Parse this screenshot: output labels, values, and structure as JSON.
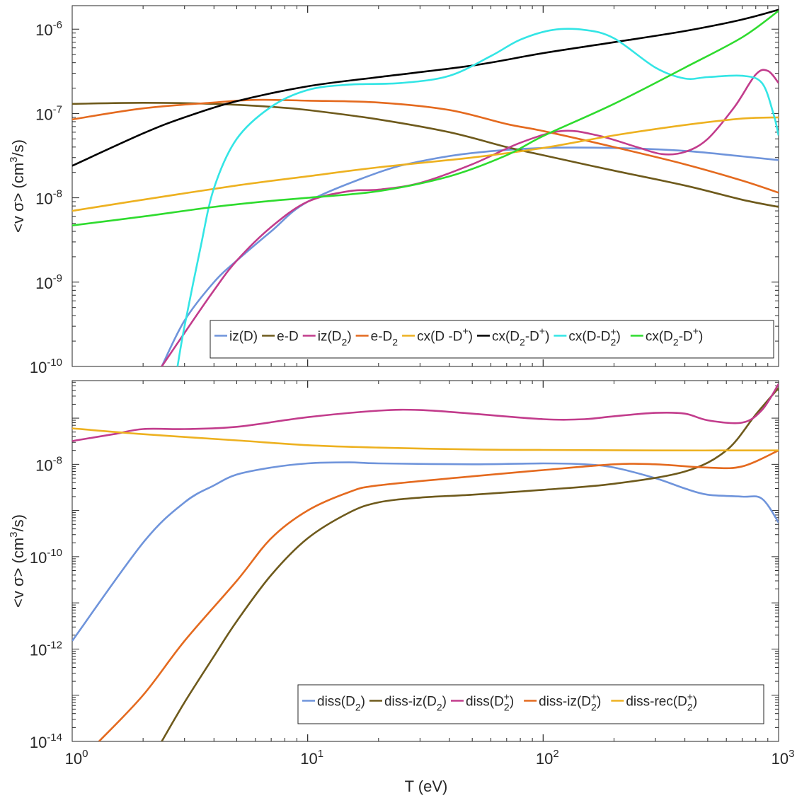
{
  "figure": {
    "xlabel": "T (eV)",
    "x_ticks": [
      {
        "value": 1,
        "base": "10",
        "exp": "0"
      },
      {
        "value": 10,
        "base": "10",
        "exp": "1"
      },
      {
        "value": 100,
        "base": "10",
        "exp": "2"
      },
      {
        "value": 1000,
        "base": "10",
        "exp": "3"
      }
    ]
  },
  "chart_data": [
    {
      "type": "line",
      "scale": "log-log",
      "title": "",
      "xlabel": "",
      "ylabel": "<v σ> (cm³/s)",
      "xlim": [
        1,
        1000
      ],
      "ylim": [
        1e-10,
        1.9e-06
      ],
      "legend_position": "bottom-right",
      "y_ticks": [
        {
          "value": 1e-06,
          "base": "10",
          "exp": "-6"
        },
        {
          "value": 1e-07,
          "base": "10",
          "exp": "-7"
        },
        {
          "value": 1e-08,
          "base": "10",
          "exp": "-8"
        },
        {
          "value": 1e-09,
          "base": "10",
          "exp": "-9"
        },
        {
          "value": 1e-10,
          "base": "10",
          "exp": "-10"
        }
      ],
      "series": [
        {
          "name": "iz(D)",
          "label_main": "iz(D)",
          "label_sub": "",
          "label_sup": "",
          "label_tail": "",
          "color": "#6F94DB",
          "points": [
            [
              2.4,
              1e-10
            ],
            [
              3,
              3.5e-10
            ],
            [
              4,
              1e-09
            ],
            [
              5,
              1.8e-09
            ],
            [
              7,
              4e-09
            ],
            [
              10,
              9e-09
            ],
            [
              20,
              2e-08
            ],
            [
              30,
              2.7e-08
            ],
            [
              50,
              3.4e-08
            ],
            [
              100,
              3.9e-08
            ],
            [
              200,
              3.9e-08
            ],
            [
              400,
              3.6e-08
            ],
            [
              700,
              3.1e-08
            ],
            [
              1000,
              2.8e-08
            ]
          ]
        },
        {
          "name": "e-D",
          "label_main": "e-D",
          "label_sub": "",
          "label_sup": "",
          "label_tail": "",
          "color": "#6E5A1C",
          "points": [
            [
              1,
              1.3e-07
            ],
            [
              2,
              1.34e-07
            ],
            [
              4,
              1.3e-07
            ],
            [
              7,
              1.2e-07
            ],
            [
              10,
              1.1e-07
            ],
            [
              20,
              8.5e-08
            ],
            [
              40,
              6e-08
            ],
            [
              70,
              4e-08
            ],
            [
              100,
              3.2e-08
            ],
            [
              200,
              2.1e-08
            ],
            [
              400,
              1.4e-08
            ],
            [
              700,
              9.5e-09
            ],
            [
              1000,
              7.8e-09
            ]
          ]
        },
        {
          "name": "iz(D2)",
          "label_main": "iz(D",
          "label_sub": "2",
          "label_sup": "",
          "label_tail": ")",
          "color": "#C23C8C",
          "points": [
            [
              2.4,
              1e-10
            ],
            [
              3,
              2.5e-10
            ],
            [
              4,
              8e-10
            ],
            [
              5,
              1.8e-09
            ],
            [
              7,
              4.5e-09
            ],
            [
              10,
              9e-09
            ],
            [
              15,
              1.2e-08
            ],
            [
              20,
              1.25e-08
            ],
            [
              30,
              1.5e-08
            ],
            [
              50,
              2.5e-08
            ],
            [
              80,
              4.5e-08
            ],
            [
              120,
              6.2e-08
            ],
            [
              170,
              5.5e-08
            ],
            [
              250,
              4e-08
            ],
            [
              320,
              3.3e-08
            ],
            [
              400,
              3.5e-08
            ],
            [
              500,
              5e-08
            ],
            [
              650,
              1.2e-07
            ],
            [
              800,
              2.9e-07
            ],
            [
              900,
              3.2e-07
            ],
            [
              1000,
              2.3e-07
            ]
          ]
        },
        {
          "name": "e-D2",
          "label_main": "e-D",
          "label_sub": "2",
          "label_sup": "",
          "label_tail": "",
          "color": "#E46A1F",
          "points": [
            [
              1,
              8.5e-08
            ],
            [
              2,
              1.15e-07
            ],
            [
              4,
              1.35e-07
            ],
            [
              6,
              1.45e-07
            ],
            [
              10,
              1.42e-07
            ],
            [
              20,
              1.35e-07
            ],
            [
              40,
              1.1e-07
            ],
            [
              70,
              7.5e-08
            ],
            [
              100,
              6.2e-08
            ],
            [
              200,
              4e-08
            ],
            [
              400,
              2.5e-08
            ],
            [
              700,
              1.6e-08
            ],
            [
              1000,
              1.15e-08
            ]
          ]
        },
        {
          "name": "cx(D-D+)",
          "label_main": "cx(D -D",
          "label_sub": "",
          "label_sup": "+",
          "label_tail": ")",
          "color": "#EDB120",
          "points": [
            [
              1,
              7e-09
            ],
            [
              2,
              9.5e-09
            ],
            [
              5,
              1.4e-08
            ],
            [
              10,
              1.8e-08
            ],
            [
              20,
              2.3e-08
            ],
            [
              50,
              3e-08
            ],
            [
              100,
              3.9e-08
            ],
            [
              200,
              5.5e-08
            ],
            [
              400,
              7.3e-08
            ],
            [
              700,
              8.7e-08
            ],
            [
              1000,
              9e-08
            ]
          ]
        },
        {
          "name": "cx(D2-D2+)",
          "label_main": "cx(D",
          "label_sub": "2",
          "label_sup": "+",
          "label_tail": ")",
          "label_mid": "-D",
          "color": "#000000",
          "points": [
            [
              1,
              2.4e-08
            ],
            [
              2,
              5.8e-08
            ],
            [
              3,
              9e-08
            ],
            [
              5,
              1.4e-07
            ],
            [
              10,
              2.1e-07
            ],
            [
              20,
              2.7e-07
            ],
            [
              50,
              3.7e-07
            ],
            [
              100,
              5.2e-07
            ],
            [
              200,
              7e-07
            ],
            [
              400,
              9.5e-07
            ],
            [
              700,
              1.3e-06
            ],
            [
              1000,
              1.7e-06
            ]
          ]
        },
        {
          "name": "cx(D-D2+)",
          "label_main": "cx(D-D",
          "label_sub": "2",
          "label_sup": "+",
          "label_tail": ")",
          "color": "#33E5E5",
          "points": [
            [
              2.8,
              1e-10
            ],
            [
              3,
              3e-10
            ],
            [
              3.5,
              2.5e-09
            ],
            [
              4,
              1.3e-08
            ],
            [
              5,
              5e-08
            ],
            [
              7,
              1.2e-07
            ],
            [
              10,
              1.9e-07
            ],
            [
              15,
              2.2e-07
            ],
            [
              25,
              2.3e-07
            ],
            [
              40,
              2.8e-07
            ],
            [
              60,
              4.8e-07
            ],
            [
              80,
              7.5e-07
            ],
            [
              110,
              9.8e-07
            ],
            [
              150,
              9.8e-07
            ],
            [
              200,
              7.8e-07
            ],
            [
              300,
              3.5e-07
            ],
            [
              400,
              2.6e-07
            ],
            [
              500,
              2.7e-07
            ],
            [
              700,
              2.8e-07
            ],
            [
              850,
              2.3e-07
            ],
            [
              950,
              1e-07
            ],
            [
              1000,
              5.5e-08
            ]
          ]
        },
        {
          "name": "cx(D2-D+)",
          "label_main": "cx(D",
          "label_sub": "2",
          "label_sup": "+",
          "label_tail": ")",
          "label_mid": "-D",
          "color": "#2EDB2E",
          "points": [
            [
              1,
              4.7e-09
            ],
            [
              2,
              6e-09
            ],
            [
              4,
              7.8e-09
            ],
            [
              7,
              9.2e-09
            ],
            [
              10,
              1e-08
            ],
            [
              20,
              1.2e-08
            ],
            [
              40,
              1.8e-08
            ],
            [
              70,
              3.2e-08
            ],
            [
              100,
              5.4e-08
            ],
            [
              200,
              1.3e-07
            ],
            [
              400,
              3.5e-07
            ],
            [
              700,
              8e-07
            ],
            [
              1000,
              1.65e-06
            ]
          ]
        }
      ]
    },
    {
      "type": "line",
      "scale": "log-log",
      "title": "",
      "xlabel": "T (eV)",
      "ylabel": "<v σ> (cm³/s)",
      "xlim": [
        1,
        1000
      ],
      "ylim": [
        1e-14,
        6.5e-07
      ],
      "legend_position": "bottom-right",
      "y_ticks": [
        {
          "value": 1e-08,
          "base": "10",
          "exp": "-8"
        },
        {
          "value": 1e-10,
          "base": "10",
          "exp": "-10"
        },
        {
          "value": 1e-12,
          "base": "10",
          "exp": "-12"
        },
        {
          "value": 1e-14,
          "base": "10",
          "exp": "-14"
        }
      ],
      "series": [
        {
          "name": "diss(D2)",
          "label_main": "diss(D",
          "label_sub": "2",
          "label_sup": "",
          "label_tail": ")",
          "color": "#6F94DB",
          "points": [
            [
              1,
              1.5e-12
            ],
            [
              2,
              2e-10
            ],
            [
              3,
              1.5e-09
            ],
            [
              4,
              3.5e-09
            ],
            [
              5,
              6e-09
            ],
            [
              7,
              8.5e-09
            ],
            [
              10,
              1.05e-08
            ],
            [
              15,
              1.1e-08
            ],
            [
              20,
              1.05e-08
            ],
            [
              50,
              1e-08
            ],
            [
              100,
              1.05e-08
            ],
            [
              150,
              1e-08
            ],
            [
              200,
              8.5e-09
            ],
            [
              300,
              5e-09
            ],
            [
              400,
              3e-09
            ],
            [
              500,
              2.2e-09
            ],
            [
              700,
              2e-09
            ],
            [
              850,
              1.8e-09
            ],
            [
              1000,
              5.5e-10
            ]
          ]
        },
        {
          "name": "diss-iz(D2)",
          "label_main": "diss-iz(D",
          "label_sub": "2",
          "label_sup": "",
          "label_tail": ")",
          "color": "#6E5A1C",
          "points": [
            [
              2.4,
              1e-14
            ],
            [
              3,
              7e-14
            ],
            [
              4,
              7e-13
            ],
            [
              5,
              4e-12
            ],
            [
              7,
              4e-11
            ],
            [
              10,
              2.5e-10
            ],
            [
              15,
              9e-10
            ],
            [
              20,
              1.5e-09
            ],
            [
              30,
              1.9e-09
            ],
            [
              50,
              2.2e-09
            ],
            [
              100,
              2.8e-09
            ],
            [
              200,
              3.8e-09
            ],
            [
              400,
              7e-09
            ],
            [
              600,
              2e-08
            ],
            [
              800,
              1.2e-07
            ],
            [
              1000,
              4.5e-07
            ]
          ]
        },
        {
          "name": "diss(D2+)",
          "label_main": "diss(D",
          "label_sub": "2",
          "label_sup": "+",
          "label_tail": ")",
          "color": "#C23C8C",
          "points": [
            [
              1,
              3.2e-08
            ],
            [
              1.5,
              4.5e-08
            ],
            [
              2,
              5.8e-08
            ],
            [
              3,
              5.8e-08
            ],
            [
              5,
              6.5e-08
            ],
            [
              10,
              1.05e-07
            ],
            [
              20,
              1.45e-07
            ],
            [
              30,
              1.5e-07
            ],
            [
              50,
              1.25e-07
            ],
            [
              100,
              9.5e-08
            ],
            [
              150,
              9.5e-08
            ],
            [
              200,
              1.1e-07
            ],
            [
              300,
              1.3e-07
            ],
            [
              400,
              1.25e-07
            ],
            [
              500,
              9e-08
            ],
            [
              700,
              8e-08
            ],
            [
              850,
              1.5e-07
            ],
            [
              1000,
              5.5e-07
            ]
          ]
        },
        {
          "name": "diss-iz(D2+)",
          "label_main": "diss-iz(D",
          "label_sub": "2",
          "label_sup": "+",
          "label_tail": ")",
          "color": "#E46A1F",
          "points": [
            [
              1.3,
              1e-14
            ],
            [
              2,
              1e-13
            ],
            [
              3,
              1.5e-12
            ],
            [
              5,
              3e-11
            ],
            [
              7,
              2.5e-10
            ],
            [
              10,
              1e-09
            ],
            [
              15,
              2.5e-09
            ],
            [
              20,
              3.5e-09
            ],
            [
              50,
              5.5e-09
            ],
            [
              100,
              7.5e-09
            ],
            [
              200,
              1e-08
            ],
            [
              300,
              1e-08
            ],
            [
              500,
              8.5e-09
            ],
            [
              700,
              9e-09
            ],
            [
              1000,
              2e-08
            ]
          ]
        },
        {
          "name": "diss-rec(D2+)",
          "label_main": "diss-rec(D",
          "label_sub": "2",
          "label_sup": "+",
          "label_tail": ")",
          "color": "#EDB120",
          "points": [
            [
              1,
              6e-08
            ],
            [
              2,
              4.5e-08
            ],
            [
              5,
              3.3e-08
            ],
            [
              10,
              2.6e-08
            ],
            [
              20,
              2.3e-08
            ],
            [
              50,
              2.1e-08
            ],
            [
              100,
              2.05e-08
            ],
            [
              300,
              2e-08
            ],
            [
              1000,
              2e-08
            ]
          ]
        }
      ]
    }
  ]
}
